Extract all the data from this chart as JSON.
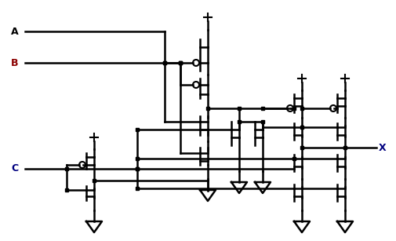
{
  "fig_width": 5.05,
  "fig_height": 3.07,
  "dpi": 100,
  "bg_color": "#ffffff",
  "lw": 1.2,
  "lw_thick": 1.8,
  "colors": {
    "A": "#000000",
    "B": "#8B0000",
    "C": "#000080",
    "X": "#000080",
    "wire": "#000000",
    "dot": "#000000"
  }
}
